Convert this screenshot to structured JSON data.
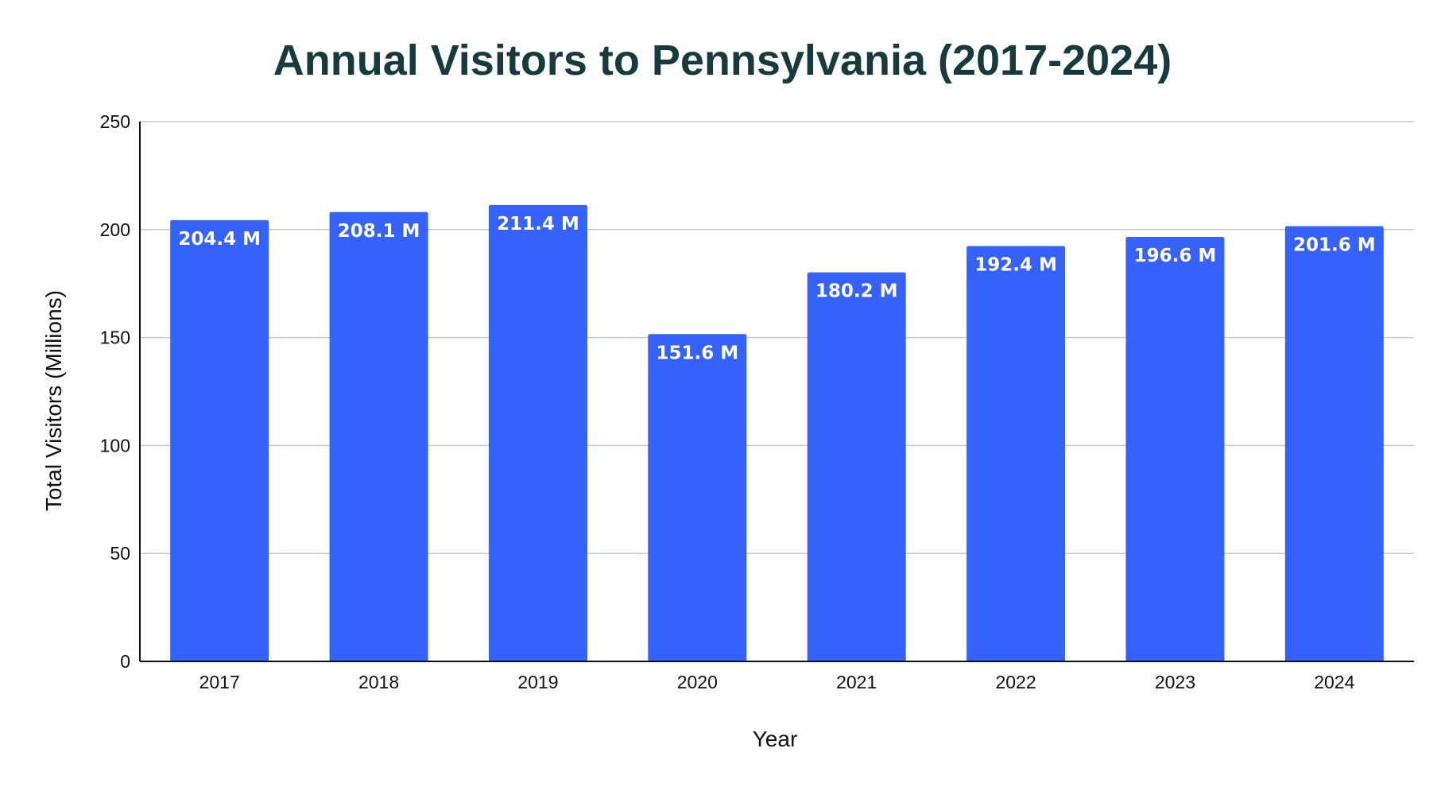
{
  "chart_data": {
    "type": "bar",
    "title": "Annual Visitors to Pennsylvania (2017-2024)",
    "xlabel": "Year",
    "ylabel": "Total Visitors (Millions)",
    "categories": [
      "2017",
      "2018",
      "2019",
      "2020",
      "2021",
      "2022",
      "2023",
      "2024"
    ],
    "values": [
      204.4,
      208.1,
      211.4,
      151.6,
      180.2,
      192.4,
      196.6,
      201.6
    ],
    "data_labels": [
      "204.4 M",
      "208.1 M",
      "211.4 M",
      "151.6 M",
      "180.2 M",
      "192.4 M",
      "196.6 M",
      "201.6 M"
    ],
    "ylim": [
      0,
      250
    ],
    "yticks": [
      0,
      50,
      100,
      150,
      200,
      250
    ],
    "grid": true,
    "legend": "none",
    "colors": {
      "bar": "#3662fc",
      "title": "#173a3f",
      "grid": "#c8c8c8",
      "axis": "#111111"
    }
  }
}
